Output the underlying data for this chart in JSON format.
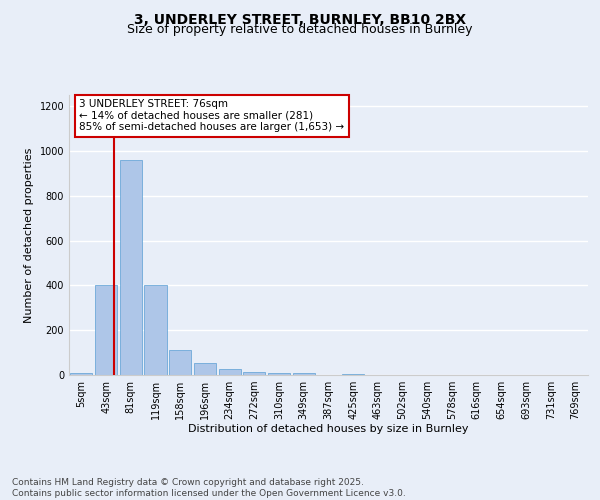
{
  "title1": "3, UNDERLEY STREET, BURNLEY, BB10 2BX",
  "title2": "Size of property relative to detached houses in Burnley",
  "xlabel": "Distribution of detached houses by size in Burnley",
  "ylabel": "Number of detached properties",
  "bin_labels": [
    "5sqm",
    "43sqm",
    "81sqm",
    "119sqm",
    "158sqm",
    "196sqm",
    "234sqm",
    "272sqm",
    "310sqm",
    "349sqm",
    "387sqm",
    "425sqm",
    "463sqm",
    "502sqm",
    "540sqm",
    "578sqm",
    "616sqm",
    "654sqm",
    "693sqm",
    "731sqm",
    "769sqm"
  ],
  "bar_values": [
    10,
    400,
    960,
    400,
    110,
    55,
    25,
    15,
    10,
    10,
    0,
    5,
    0,
    0,
    0,
    0,
    0,
    0,
    0,
    0,
    0
  ],
  "bar_color": "#aec6e8",
  "bar_edge_color": "#5a9fd4",
  "vline_color": "#cc0000",
  "annotation_line1": "3 UNDERLEY STREET: 76sqm",
  "annotation_line2": "← 14% of detached houses are smaller (281)",
  "annotation_line3": "85% of semi-detached houses are larger (1,653) →",
  "annotation_box_color": "#ffffff",
  "annotation_box_edge_color": "#cc0000",
  "ylim": [
    0,
    1250
  ],
  "yticks": [
    0,
    200,
    400,
    600,
    800,
    1000,
    1200
  ],
  "footer_text": "Contains HM Land Registry data © Crown copyright and database right 2025.\nContains public sector information licensed under the Open Government Licence v3.0.",
  "bg_color": "#e8eef8",
  "plot_bg_color": "#e8eef8",
  "grid_color": "#ffffff",
  "title_fontsize": 10,
  "subtitle_fontsize": 9,
  "axis_label_fontsize": 8,
  "tick_fontsize": 7,
  "annotation_fontsize": 7.5,
  "footer_fontsize": 6.5
}
